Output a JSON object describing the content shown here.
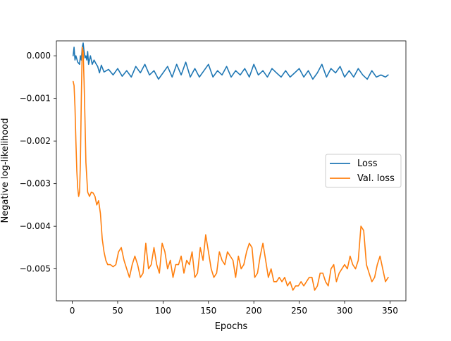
{
  "chart_data": {
    "type": "line",
    "title": "",
    "xlabel": "Epochs",
    "ylabel": "Negative log-likelihood",
    "xlim": [
      -17.5,
      367.5
    ],
    "ylim": [
      -0.00575,
      0.00035
    ],
    "xticks": [
      0,
      50,
      100,
      150,
      200,
      250,
      300,
      350
    ],
    "yticks": [
      -0.005,
      -0.004,
      -0.003,
      -0.002,
      -0.001,
      0.0
    ],
    "ytick_labels": [
      "−0.005",
      "−0.004",
      "−0.003",
      "−0.002",
      "−0.001",
      "0.000"
    ],
    "legend": {
      "position": "center-right"
    },
    "grid": false,
    "series": [
      {
        "name": "Loss",
        "color": "#1f77b4",
        "x": [
          1,
          2,
          3,
          4,
          6,
          8,
          9,
          10,
          11,
          12,
          13,
          14,
          15,
          16,
          17,
          18,
          20,
          22,
          24,
          26,
          28,
          30,
          32,
          35,
          40,
          45,
          50,
          55,
          60,
          65,
          70,
          75,
          80,
          85,
          90,
          95,
          100,
          105,
          110,
          115,
          120,
          125,
          130,
          135,
          140,
          145,
          150,
          155,
          160,
          165,
          170,
          175,
          180,
          185,
          190,
          195,
          200,
          205,
          210,
          215,
          220,
          225,
          230,
          235,
          240,
          245,
          250,
          255,
          260,
          265,
          270,
          275,
          280,
          285,
          290,
          295,
          300,
          305,
          310,
          315,
          320,
          325,
          330,
          335,
          340,
          345,
          348
        ],
        "values": [
          0.0,
          0.0002,
          -0.0001,
          0.0,
          -0.00015,
          -0.0002,
          0.0,
          -0.0001,
          0.0002,
          0.0003,
          0.0001,
          -5e-05,
          0.0,
          -0.0001,
          0.0001,
          -0.0002,
          0.0,
          -0.0002,
          -0.0001,
          -0.00018,
          -0.00025,
          -0.0004,
          -0.00022,
          -0.00038,
          -0.00032,
          -0.00045,
          -0.0003,
          -0.00048,
          -0.00035,
          -0.0005,
          -0.00025,
          -0.0004,
          -0.0002,
          -0.00045,
          -0.00035,
          -0.00055,
          -0.0004,
          -0.00025,
          -0.0005,
          -0.0002,
          -0.00045,
          -0.00015,
          -0.0005,
          -0.0003,
          -0.0005,
          -0.00035,
          -0.0002,
          -0.0005,
          -0.00035,
          -0.00045,
          -0.00025,
          -0.0005,
          -0.00035,
          -0.00045,
          -0.0003,
          -0.0005,
          -0.0002,
          -0.00045,
          -0.00035,
          -0.0005,
          -0.0003,
          -0.0004,
          -0.0005,
          -0.00035,
          -0.0005,
          -0.0004,
          -0.0003,
          -0.0005,
          -0.00035,
          -0.00055,
          -0.0004,
          -0.0002,
          -0.0005,
          -0.0003,
          -0.0004,
          -0.00025,
          -0.0005,
          -0.00035,
          -0.0005,
          -0.0003,
          -0.00045,
          -0.00055,
          -0.00035,
          -0.0005,
          -0.00045,
          -0.0005,
          -0.00045
        ]
      },
      {
        "name": "Val. loss",
        "color": "#ff7f0e",
        "x": [
          1,
          2,
          3,
          4,
          5,
          6,
          7,
          8,
          9,
          10,
          11,
          12,
          13,
          14,
          15,
          17,
          19,
          21,
          23,
          25,
          27,
          29,
          31,
          33,
          35,
          37,
          39,
          42,
          45,
          48,
          51,
          54,
          57,
          60,
          63,
          66,
          69,
          72,
          75,
          78,
          81,
          84,
          87,
          90,
          93,
          96,
          99,
          102,
          105,
          108,
          111,
          114,
          117,
          120,
          123,
          126,
          129,
          132,
          135,
          138,
          141,
          144,
          147,
          150,
          153,
          156,
          159,
          162,
          165,
          168,
          171,
          174,
          177,
          180,
          183,
          186,
          189,
          192,
          195,
          198,
          201,
          204,
          207,
          210,
          213,
          216,
          219,
          222,
          225,
          228,
          231,
          234,
          237,
          240,
          243,
          246,
          249,
          252,
          255,
          258,
          261,
          264,
          267,
          270,
          273,
          276,
          279,
          282,
          285,
          288,
          291,
          294,
          297,
          300,
          303,
          306,
          309,
          312,
          315,
          318,
          321,
          324,
          327,
          330,
          333,
          336,
          339,
          342,
          345,
          348
        ],
        "values": [
          -0.0006,
          -0.0007,
          -0.0012,
          -0.002,
          -0.0027,
          -0.0031,
          -0.0033,
          -0.0032,
          -0.0025,
          -0.001,
          0.0002,
          0.0001,
          -0.0006,
          -0.0015,
          -0.0025,
          -0.0032,
          -0.0033,
          -0.0032,
          -0.00322,
          -0.0033,
          -0.0035,
          -0.0034,
          -0.0037,
          -0.0043,
          -0.0046,
          -0.0048,
          -0.0049,
          -0.0049,
          -0.00495,
          -0.0049,
          -0.0046,
          -0.0045,
          -0.0048,
          -0.005,
          -0.0052,
          -0.0049,
          -0.0047,
          -0.0049,
          -0.0052,
          -0.0051,
          -0.0044,
          -0.005,
          -0.0049,
          -0.0045,
          -0.0049,
          -0.0051,
          -0.0044,
          -0.0046,
          -0.005,
          -0.0048,
          -0.0052,
          -0.0049,
          -0.0049,
          -0.0047,
          -0.0051,
          -0.0048,
          -0.0049,
          -0.0046,
          -0.0052,
          -0.0051,
          -0.0045,
          -0.0048,
          -0.0042,
          -0.0046,
          -0.005,
          -0.0052,
          -0.0051,
          -0.0046,
          -0.0048,
          -0.0049,
          -0.0046,
          -0.0047,
          -0.0048,
          -0.0052,
          -0.0047,
          -0.005,
          -0.0049,
          -0.0046,
          -0.0044,
          -0.0045,
          -0.0052,
          -0.0051,
          -0.0047,
          -0.0044,
          -0.0048,
          -0.0052,
          -0.005,
          -0.0053,
          -0.0053,
          -0.0052,
          -0.0053,
          -0.0052,
          -0.0054,
          -0.0053,
          -0.0055,
          -0.0054,
          -0.0054,
          -0.0053,
          -0.0054,
          -0.0053,
          -0.0052,
          -0.0052,
          -0.0055,
          -0.0054,
          -0.0051,
          -0.0051,
          -0.0053,
          -0.0054,
          -0.005,
          -0.0049,
          -0.0053,
          -0.0051,
          -0.005,
          -0.0049,
          -0.005,
          -0.0047,
          -0.0049,
          -0.005,
          -0.0048,
          -0.004,
          -0.0041,
          -0.0049,
          -0.0051,
          -0.0053,
          -0.0052,
          -0.0049,
          -0.0047,
          -0.005,
          -0.0053,
          -0.0052
        ]
      }
    ]
  }
}
